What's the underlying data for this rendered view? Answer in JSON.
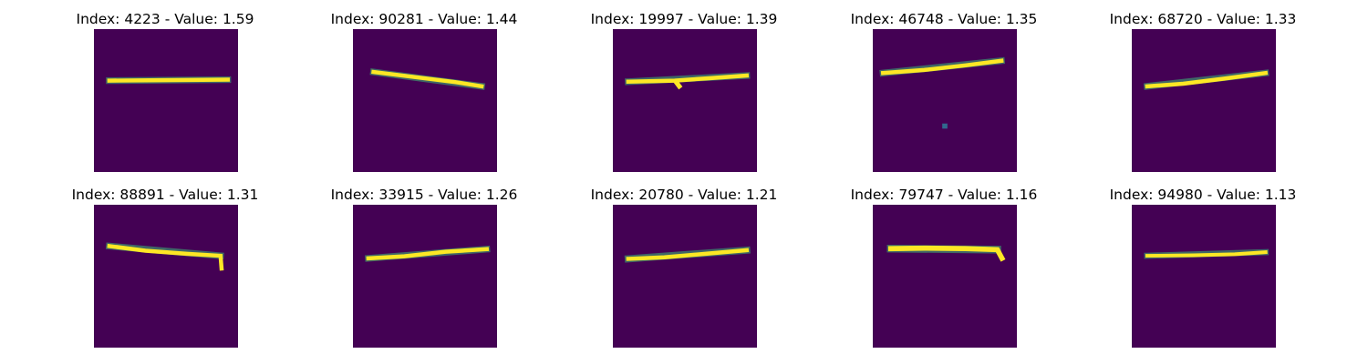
{
  "figure": {
    "panels": [
      {
        "title": "Index: 4223 - Value: 1.59",
        "index": 4223,
        "value": 1.59,
        "image": {
          "background": "#440154",
          "strokes": [
            {
              "points": [
                [
                  3,
                  10.1
                ],
                [
                  13,
                  10.0
                ],
                [
                  26,
                  9.9
                ]
              ],
              "width": 0.8,
              "color": "#fde725"
            },
            {
              "points": [
                [
                  3,
                  10.1
                ],
                [
                  26,
                  9.9
                ]
              ],
              "width": 1.3,
              "color": "#3cbc75",
              "opacity": 0.55
            }
          ]
        }
      },
      {
        "title": "Index: 90281 - Value: 1.44",
        "index": 90281,
        "value": 1.44,
        "image": {
          "background": "#440154",
          "strokes": [
            {
              "points": [
                [
                  4,
                  8.4
                ],
                [
                  12,
                  9.4
                ],
                [
                  20,
                  10.4
                ],
                [
                  25,
                  11.2
                ]
              ],
              "width": 0.8,
              "color": "#fde725"
            },
            {
              "points": [
                [
                  4,
                  8.4
                ],
                [
                  25,
                  11.2
                ]
              ],
              "width": 1.3,
              "color": "#3cbc75",
              "opacity": 0.55
            }
          ]
        }
      },
      {
        "title": "Index: 19997 - Value: 1.39",
        "index": 19997,
        "value": 1.39,
        "image": {
          "background": "#440154",
          "strokes": [
            {
              "points": [
                [
                  3,
                  10.3
                ],
                [
                  12,
                  10.1
                ],
                [
                  19,
                  9.6
                ],
                [
                  26,
                  9.1
                ]
              ],
              "width": 0.8,
              "color": "#fde725"
            },
            {
              "points": [
                [
                  3,
                  10.3
                ],
                [
                  26,
                  9.1
                ]
              ],
              "width": 1.3,
              "color": "#3cbc75",
              "opacity": 0.55
            },
            {
              "points": [
                [
                  12.3,
                  10.4
                ],
                [
                  12.9,
                  11.2
                ]
              ],
              "width": 0.9,
              "color": "#fde725"
            }
          ]
        }
      },
      {
        "title": "Index: 46748 - Value: 1.35",
        "index": 46748,
        "value": 1.35,
        "image": {
          "background": "#440154",
          "strokes": [
            {
              "points": [
                [
                  2,
                  8.6
                ],
                [
                  10,
                  8.0
                ],
                [
                  18,
                  7.1
                ],
                [
                  25,
                  6.2
                ]
              ],
              "width": 0.8,
              "color": "#fde725"
            },
            {
              "points": [
                [
                  2,
                  8.6
                ],
                [
                  25,
                  6.2
                ]
              ],
              "width": 1.3,
              "color": "#3cbc75",
              "opacity": 0.55
            }
          ],
          "dots": [
            {
              "x": 14.0,
              "y": 19.0,
              "size": 1.0,
              "color": "#31688e"
            }
          ]
        }
      },
      {
        "title": "Index: 68720 - Value: 1.33",
        "index": 68720,
        "value": 1.33,
        "image": {
          "background": "#440154",
          "strokes": [
            {
              "points": [
                [
                  3,
                  11.2
                ],
                [
                  10,
                  10.7
                ],
                [
                  18,
                  9.7
                ],
                [
                  26,
                  8.6
                ]
              ],
              "width": 0.8,
              "color": "#fde725"
            },
            {
              "points": [
                [
                  3,
                  11.2
                ],
                [
                  26,
                  8.6
                ]
              ],
              "width": 1.3,
              "color": "#3cbc75",
              "opacity": 0.55
            }
          ]
        }
      },
      {
        "title": "Index: 88891 - Value: 1.31",
        "index": 88891,
        "value": 1.31,
        "image": {
          "background": "#440154",
          "strokes": [
            {
              "points": [
                [
                  3,
                  8.1
                ],
                [
                  10,
                  9.0
                ],
                [
                  18,
                  9.6
                ],
                [
                  24.6,
                  10.0
                ],
                [
                  24.8,
                  12.5
                ]
              ],
              "width": 0.8,
              "color": "#fde725"
            },
            {
              "points": [
                [
                  3,
                  8.1
                ],
                [
                  24.6,
                  10.0
                ]
              ],
              "width": 1.3,
              "color": "#3cbc75",
              "opacity": 0.55
            }
          ]
        }
      },
      {
        "title": "Index: 33915 - Value: 1.26",
        "index": 33915,
        "value": 1.26,
        "image": {
          "background": "#440154",
          "strokes": [
            {
              "points": [
                [
                  3,
                  10.5
                ],
                [
                  10,
                  10.1
                ],
                [
                  18,
                  9.2
                ],
                [
                  26,
                  8.7
                ]
              ],
              "width": 0.8,
              "color": "#fde725"
            },
            {
              "points": [
                [
                  3,
                  10.5
                ],
                [
                  26,
                  8.7
                ]
              ],
              "width": 1.3,
              "color": "#3cbc75",
              "opacity": 0.55
            }
          ]
        }
      },
      {
        "title": "Index: 20780 - Value: 1.21",
        "index": 20780,
        "value": 1.21,
        "image": {
          "background": "#440154",
          "strokes": [
            {
              "points": [
                [
                  3,
                  10.6
                ],
                [
                  10,
                  10.3
                ],
                [
                  18,
                  9.6
                ],
                [
                  26,
                  8.9
                ]
              ],
              "width": 0.8,
              "color": "#fde725"
            },
            {
              "points": [
                [
                  3,
                  10.6
                ],
                [
                  26,
                  8.9
                ]
              ],
              "width": 1.4,
              "color": "#3cbc75",
              "opacity": 0.55
            }
          ]
        }
      },
      {
        "title": "Index: 79747 - Value: 1.16",
        "index": 79747,
        "value": 1.16,
        "image": {
          "background": "#440154",
          "strokes": [
            {
              "points": [
                [
                  3.5,
                  8.6
                ],
                [
                  10,
                  8.5
                ],
                [
                  18,
                  8.6
                ],
                [
                  24.2,
                  8.8
                ],
                [
                  25.1,
                  10.5
                ]
              ],
              "width": 1.0,
              "color": "#fde725"
            },
            {
              "points": [
                [
                  3.5,
                  8.6
                ],
                [
                  24.2,
                  8.8
                ]
              ],
              "width": 1.5,
              "color": "#3cbc75",
              "opacity": 0.55
            }
          ]
        }
      },
      {
        "title": "Index: 94980 - Value: 1.13",
        "index": 94980,
        "value": 1.13,
        "image": {
          "background": "#440154",
          "strokes": [
            {
              "points": [
                [
                  3,
                  10.0
                ],
                [
                  12,
                  9.9
                ],
                [
                  20,
                  9.7
                ],
                [
                  26,
                  9.3
                ]
              ],
              "width": 0.7,
              "color": "#fde725"
            },
            {
              "points": [
                [
                  3,
                  10.0
                ],
                [
                  26,
                  9.3
                ]
              ],
              "width": 1.2,
              "color": "#3cbc75",
              "opacity": 0.55
            }
          ]
        }
      }
    ]
  }
}
